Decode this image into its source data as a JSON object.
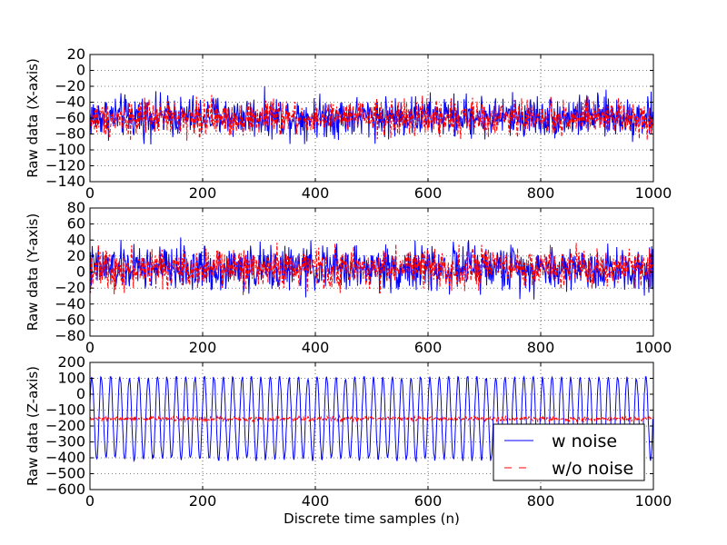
{
  "figure": {
    "xlabel": "Discrete time samples (n)"
  },
  "chart_data": [
    {
      "type": "line",
      "ylabel": "Raw data (X-axis)",
      "xlim": [
        0,
        1000
      ],
      "ylim": [
        -140,
        20
      ],
      "xticks": [
        0,
        200,
        400,
        600,
        800,
        1000
      ],
      "xtick_labels": [
        "0",
        "200",
        "400",
        "600",
        "800",
        "1000"
      ],
      "yticks": [
        20,
        0,
        -20,
        -40,
        -60,
        -80,
        -100,
        -120,
        -140
      ],
      "ytick_labels": [
        "20",
        "0",
        "−20",
        "−40",
        "−60",
        "−80",
        "−100",
        "−120",
        "−140"
      ],
      "grid": true,
      "series": [
        {
          "name": "w noise",
          "color": "#0000ff",
          "style": "solid",
          "points": 1000,
          "mean": -58,
          "noise_amplitude": 26,
          "min": -101,
          "max": -20
        },
        {
          "name": "w/o noise",
          "color": "#ff0000",
          "style": "dashed",
          "points": 1000,
          "mean": -60,
          "noise_amplitude": 22,
          "min": -100,
          "max": -17
        }
      ]
    },
    {
      "type": "line",
      "ylabel": "Raw data (Y-axis)",
      "xlim": [
        0,
        1000
      ],
      "ylim": [
        -80,
        80
      ],
      "xticks": [
        0,
        200,
        400,
        600,
        800,
        1000
      ],
      "xtick_labels": [
        "0",
        "200",
        "400",
        "600",
        "800",
        "1000"
      ],
      "yticks": [
        80,
        60,
        40,
        20,
        0,
        -20,
        -40,
        -60,
        -80
      ],
      "ytick_labels": [
        "80",
        "60",
        "40",
        "20",
        "0",
        "−20",
        "−40",
        "−60",
        "−80"
      ],
      "grid": true,
      "series": [
        {
          "name": "w noise",
          "color": "#0000ff",
          "style": "solid",
          "points": 1000,
          "mean": 5,
          "noise_amplitude": 28,
          "min": -45,
          "max": 45
        },
        {
          "name": "w/o noise",
          "color": "#ff0000",
          "style": "dashed",
          "points": 1000,
          "mean": 5,
          "noise_amplitude": 24,
          "min": -45,
          "max": 45
        }
      ]
    },
    {
      "type": "line",
      "ylabel": "Raw data (Z-axis)",
      "xlim": [
        0,
        1000
      ],
      "ylim": [
        -600,
        200
      ],
      "xticks": [
        0,
        200,
        400,
        600,
        800,
        1000
      ],
      "xtick_labels": [
        "0",
        "200",
        "400",
        "600",
        "800",
        "1000"
      ],
      "yticks": [
        200,
        100,
        0,
        -100,
        -200,
        -300,
        -400,
        -500,
        -600
      ],
      "ytick_labels": [
        "200",
        "100",
        "0",
        "−100",
        "−200",
        "−300",
        "−400",
        "−500",
        "−600"
      ],
      "grid": true,
      "legend": {
        "position": "lower-right",
        "entries": [
          "w noise",
          "w/o noise"
        ]
      },
      "series": [
        {
          "name": "w noise",
          "color": "#0000ff",
          "style": "solid",
          "points": 1000,
          "offset": -150,
          "amplitude": 260,
          "cycles": 60,
          "min": -420,
          "max": 110
        },
        {
          "name": "w/o noise",
          "color": "#ff0000",
          "style": "dashed",
          "points": 1000,
          "mean": -155,
          "noise_amplitude": 15,
          "min": -175,
          "max": -135
        }
      ]
    }
  ]
}
